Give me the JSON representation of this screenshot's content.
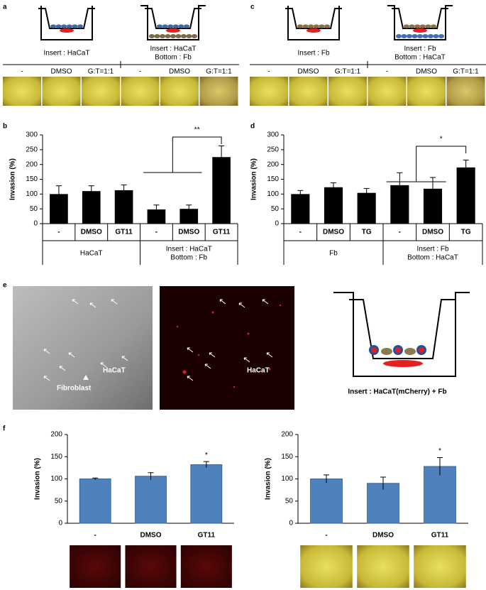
{
  "figure": {
    "panel_labels": [
      "a",
      "b",
      "c",
      "d",
      "e",
      "f"
    ],
    "a_inserts": [
      [
        "Insert : HaCaT"
      ],
      [
        "Insert : HaCaT",
        "Bottom : Fb"
      ]
    ],
    "a_conditions": [
      "-",
      "DMSO",
      "G:T=1:1",
      "-",
      "DMSO",
      "G:T=1:1"
    ],
    "c_inserts": [
      [
        "Insert : Fb"
      ],
      [
        "Insert : Fb",
        "Bottom : HaCaT"
      ]
    ],
    "c_conditions": [
      "-",
      "DMSO",
      "G:T=1:1",
      "-",
      "DMSO",
      "G:T=1:1"
    ],
    "e_labels": [
      "HaCaT",
      "Fibroblast",
      "HaCaT"
    ],
    "e_insert": "Insert : HaCaT(mCherry) + Fb"
  },
  "chart_data": [
    {
      "type": "bar",
      "ylabel": "Invasion (%)",
      "categories": [
        "-",
        "DMSO",
        "GT11",
        "-",
        "DMSO",
        "GT11"
      ],
      "groups": [
        [
          "HaCaT"
        ],
        [
          "Insert : HaCaT",
          "Bottom : Fb"
        ]
      ],
      "values": [
        100,
        110,
        113,
        48,
        50,
        225
      ],
      "errors": [
        28,
        18,
        18,
        15,
        13,
        38
      ],
      "color": "#000000",
      "ylim": [
        0,
        300
      ],
      "yticks": [
        0,
        50,
        100,
        150,
        200,
        250,
        300
      ],
      "annotation": "**"
    },
    {
      "type": "bar",
      "ylabel": "Invasion (%)",
      "categories": [
        "-",
        "DMSO",
        "TG",
        "-",
        "DMSO",
        "TG"
      ],
      "groups": [
        [
          "Fb"
        ],
        [
          "Insert : Fb",
          "Bottom : HaCaT"
        ]
      ],
      "values": [
        100,
        123,
        104,
        130,
        118,
        190
      ],
      "errors": [
        12,
        15,
        15,
        42,
        38,
        25
      ],
      "color": "#000000",
      "ylim": [
        0,
        300
      ],
      "yticks": [
        0,
        50,
        100,
        150,
        200,
        250,
        300
      ],
      "annotation": "*"
    },
    {
      "type": "bar",
      "ylabel": "Invasion (%)",
      "categories": [
        "-",
        "DMSO",
        "GT11"
      ],
      "values": [
        100,
        106,
        132
      ],
      "errors": [
        2,
        8,
        7
      ],
      "color": "#4f81bd",
      "ylim": [
        0,
        200
      ],
      "yticks": [
        0,
        50,
        100,
        150,
        200
      ],
      "annotation": "*"
    },
    {
      "type": "bar",
      "ylabel": "Invasion (%)",
      "categories": [
        "-",
        "DMSO",
        "GT11"
      ],
      "values": [
        100,
        90,
        128
      ],
      "errors": [
        9,
        14,
        20
      ],
      "color": "#4f81bd",
      "ylim": [
        0,
        200
      ],
      "yticks": [
        0,
        50,
        100,
        150,
        200
      ],
      "annotation": "*"
    }
  ]
}
